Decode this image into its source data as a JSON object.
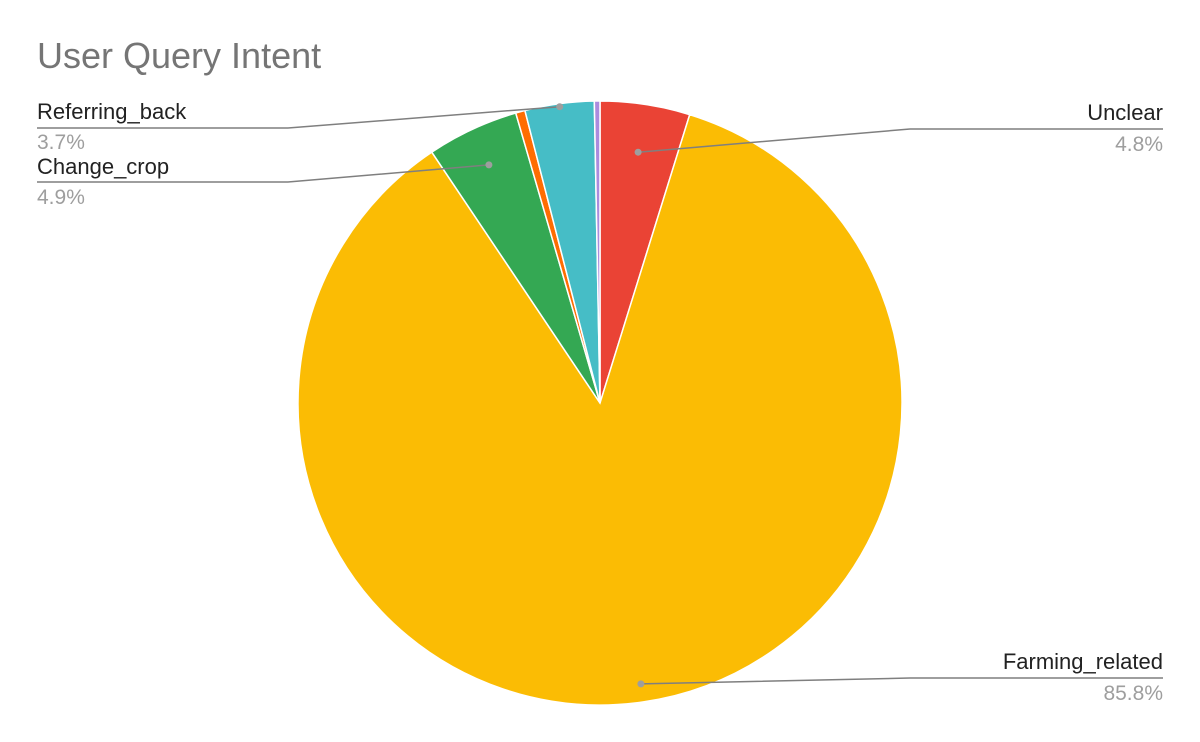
{
  "chart_data": {
    "type": "pie",
    "title": "User Query Intent",
    "start_angle_deg": 0,
    "direction": "clockwise",
    "slices": [
      {
        "label": "Unclear",
        "percent_label": "4.8%",
        "value": 4.8,
        "color": "#EA4335",
        "labeled": true
      },
      {
        "label": "Farming_related",
        "percent_label": "85.8%",
        "value": 85.8,
        "color": "#FBBC04",
        "labeled": true
      },
      {
        "label": "Change_crop",
        "percent_label": "4.9%",
        "value": 4.9,
        "color": "#34A853",
        "labeled": true
      },
      {
        "label": "",
        "percent_label": "",
        "value": 0.5,
        "color": "#FF6D01",
        "labeled": false
      },
      {
        "label": "Referring_back",
        "percent_label": "3.7%",
        "value": 3.7,
        "color": "#46BDC6",
        "labeled": true
      },
      {
        "label": "",
        "percent_label": "",
        "value": 0.3,
        "color": "#AB8CDE",
        "labeled": false
      }
    ],
    "legend": "callout labels"
  }
}
